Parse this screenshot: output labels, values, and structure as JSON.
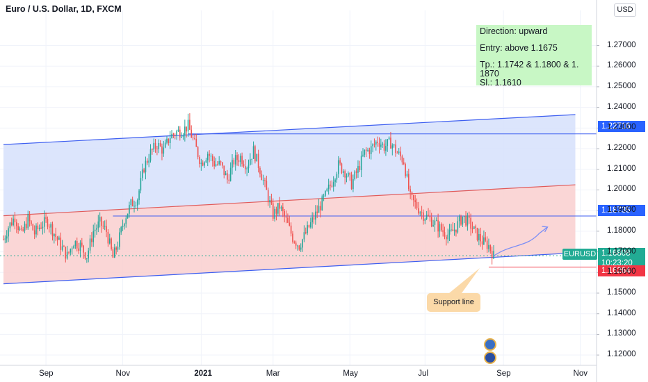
{
  "header": {
    "title": "Euro / U.S. Dollar, 1D, FXCM",
    "currency": "USD"
  },
  "note": {
    "direction": "Direction: upward",
    "entry": "Entry: above 1.1675",
    "tp": "Tp.: 1.1742 & 1.1800 & 1. 1870",
    "sl": "Sl.: 1.1610"
  },
  "callout": "Support line",
  "price_tags": {
    "upper": "1.22716",
    "middle": "1.18735",
    "symbol": "EURUSD",
    "current": "1.16808",
    "countdown": "10:23:20",
    "stop": "1.16264"
  },
  "colors": {
    "up": "#26a69a",
    "down": "#ef5350",
    "channel_upper_fill": "#d6e0fb",
    "channel_lower_fill": "#f9cfcf",
    "channel_line": "#3d5ef0",
    "mid_line": "#e05a5a",
    "note_bg": "#c8f7c5"
  },
  "chart_data": {
    "type": "candlestick",
    "title": "Euro / U.S. Dollar, 1D, FXCM",
    "x_ticks": [
      "Sep",
      "Nov",
      "2021",
      "Mar",
      "May",
      "Jul",
      "Sep",
      "Nov"
    ],
    "y_ticks": [
      "1.27000",
      "1.26000",
      "1.25000",
      "1.24000",
      "1.23000",
      "1.22000",
      "1.21000",
      "1.20000",
      "1.19000",
      "1.18000",
      "1.17000",
      "1.16000",
      "1.15000",
      "1.14000",
      "1.13000",
      "1.12000"
    ],
    "ylim": [
      1.115,
      1.287
    ],
    "path_points": [
      [
        0,
        1.176
      ],
      [
        3,
        1.182
      ],
      [
        7,
        1.187
      ],
      [
        11,
        1.178
      ],
      [
        15,
        1.186
      ],
      [
        19,
        1.179
      ],
      [
        23,
        1.183
      ],
      [
        27,
        1.185
      ],
      [
        31,
        1.179
      ],
      [
        35,
        1.173
      ],
      [
        39,
        1.168
      ],
      [
        43,
        1.175
      ],
      [
        47,
        1.173
      ],
      [
        51,
        1.168
      ],
      [
        55,
        1.18
      ],
      [
        59,
        1.184
      ],
      [
        63,
        1.18
      ],
      [
        67,
        1.167
      ],
      [
        70,
        1.174
      ],
      [
        74,
        1.186
      ],
      [
        78,
        1.193
      ],
      [
        82,
        1.196
      ],
      [
        86,
        1.211
      ],
      [
        90,
        1.218
      ],
      [
        94,
        1.222
      ],
      [
        98,
        1.219
      ],
      [
        102,
        1.226
      ],
      [
        106,
        1.228
      ],
      [
        110,
        1.229
      ],
      [
        113,
        1.231
      ],
      [
        117,
        1.222
      ],
      [
        121,
        1.213
      ],
      [
        125,
        1.218
      ],
      [
        129,
        1.213
      ],
      [
        133,
        1.212
      ],
      [
        137,
        1.205
      ],
      [
        141,
        1.214
      ],
      [
        145,
        1.216
      ],
      [
        149,
        1.212
      ],
      [
        153,
        1.219
      ],
      [
        157,
        1.21
      ],
      [
        161,
        1.199
      ],
      [
        165,
        1.188
      ],
      [
        169,
        1.192
      ],
      [
        173,
        1.185
      ],
      [
        177,
        1.177
      ],
      [
        181,
        1.173
      ],
      [
        185,
        1.179
      ],
      [
        189,
        1.185
      ],
      [
        193,
        1.191
      ],
      [
        197,
        1.197
      ],
      [
        201,
        1.204
      ],
      [
        205,
        1.212
      ],
      [
        209,
        1.209
      ],
      [
        213,
        1.203
      ],
      [
        217,
        1.21
      ],
      [
        221,
        1.218
      ],
      [
        225,
        1.22
      ],
      [
        229,
        1.224
      ],
      [
        233,
        1.221
      ],
      [
        237,
        1.223
      ],
      [
        241,
        1.218
      ],
      [
        245,
        1.214
      ],
      [
        249,
        1.196
      ],
      [
        253,
        1.192
      ],
      [
        257,
        1.188
      ],
      [
        261,
        1.186
      ],
      [
        265,
        1.183
      ],
      [
        269,
        1.18
      ],
      [
        273,
        1.178
      ],
      [
        277,
        1.182
      ],
      [
        281,
        1.187
      ],
      [
        285,
        1.184
      ],
      [
        289,
        1.179
      ],
      [
        293,
        1.175
      ],
      [
        297,
        1.173
      ],
      [
        300,
        1.168
      ]
    ],
    "channel": {
      "upper": {
        "start": [
          0,
          1.222
        ],
        "end": [
          350,
          1.2365
        ]
      },
      "middle": {
        "start": [
          0,
          1.1875
        ],
        "end": [
          350,
          1.2025
        ]
      },
      "lower": {
        "start": [
          0,
          1.1545
        ],
        "end": [
          350,
          1.1695
        ]
      }
    },
    "horizontal_lines": [
      1.22716,
      1.18735,
      1.16808,
      1.16264
    ],
    "forecast_path": [
      [
        300,
        1.168
      ],
      [
        311,
        1.174
      ],
      [
        320,
        1.172
      ],
      [
        328,
        1.179
      ],
      [
        333,
        1.182
      ]
    ]
  }
}
